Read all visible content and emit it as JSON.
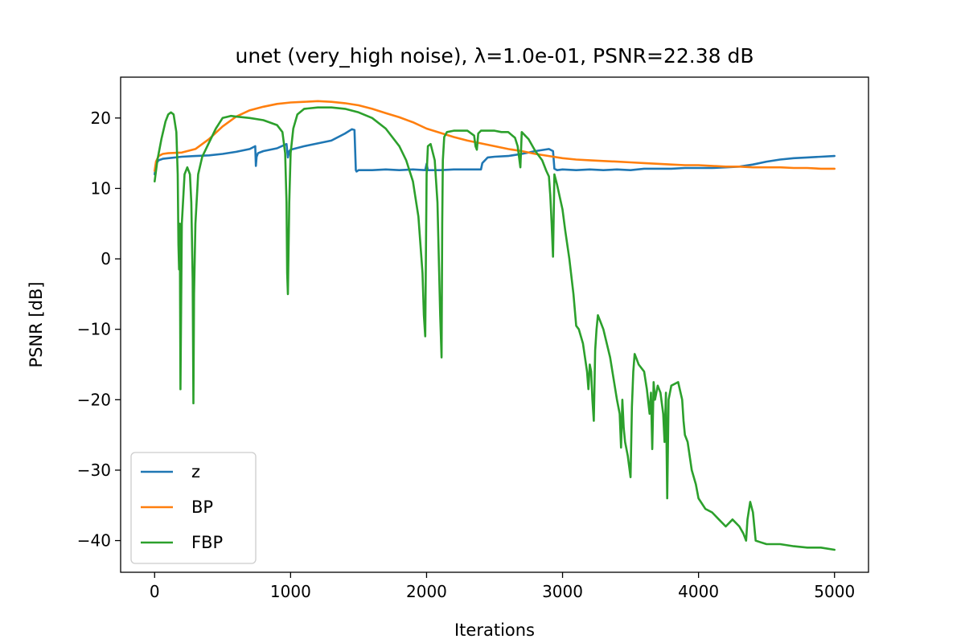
{
  "chart_data": {
    "type": "line",
    "title": "unet (very_high noise), λ=1.0e-01, PSNR=22.38 dB",
    "xlabel": "Iterations",
    "ylabel": "PSNR [dB]",
    "xlim": [
      -250,
      5250
    ],
    "ylim": [
      -44.5,
      25.8
    ],
    "xticks": [
      0,
      1000,
      2000,
      3000,
      4000,
      5000
    ],
    "xtick_labels": [
      "0",
      "1000",
      "2000",
      "3000",
      "4000",
      "5000"
    ],
    "yticks": [
      20,
      10,
      0,
      -10,
      -20,
      -30,
      -40
    ],
    "ytick_labels": [
      "20",
      "10",
      "0",
      "−10",
      "−20",
      "−30",
      "−40"
    ],
    "grid": false,
    "legend": "lower-left",
    "series": [
      {
        "name": "z",
        "color": "#1f77b4",
        "x": [
          0,
          10,
          30,
          60,
          100,
          150,
          200,
          300,
          400,
          500,
          600,
          700,
          740,
          745,
          750,
          760,
          800,
          900,
          970,
          980,
          990,
          1000,
          1100,
          1200,
          1300,
          1400,
          1450,
          1470,
          1480,
          1485,
          1500,
          1600,
          1700,
          1800,
          1900,
          1990,
          2000,
          2010,
          2100,
          2200,
          2300,
          2400,
          2410,
          2450,
          2500,
          2600,
          2700,
          2800,
          2900,
          2930,
          2940,
          2960,
          3000,
          3100,
          3200,
          3300,
          3400,
          3500,
          3600,
          3700,
          3800,
          3900,
          4000,
          4100,
          4200,
          4300,
          4400,
          4500,
          4600,
          4700,
          4800,
          4900,
          5000
        ],
        "y": [
          12,
          13.5,
          14,
          14.2,
          14.3,
          14.4,
          14.5,
          14.6,
          14.7,
          14.9,
          15.2,
          15.6,
          16,
          13.2,
          14.5,
          15,
          15.3,
          15.7,
          16.3,
          14.4,
          15.3,
          15.5,
          16,
          16.4,
          16.8,
          17.8,
          18.4,
          18.3,
          12.6,
          12.4,
          12.6,
          12.6,
          12.7,
          12.6,
          12.7,
          12.6,
          13.5,
          12.6,
          12.6,
          12.7,
          12.7,
          12.7,
          13.6,
          14.4,
          14.5,
          14.6,
          14.9,
          15.3,
          15.6,
          15.3,
          12.8,
          12.6,
          12.7,
          12.6,
          12.7,
          12.6,
          12.7,
          12.6,
          12.8,
          12.8,
          12.8,
          12.9,
          12.9,
          12.9,
          13,
          13.1,
          13.4,
          13.8,
          14.1,
          14.3,
          14.4,
          14.5,
          14.6
        ]
      },
      {
        "name": "BP",
        "color": "#ff7f0e",
        "x": [
          0,
          10,
          30,
          60,
          100,
          200,
          300,
          400,
          500,
          600,
          700,
          800,
          900,
          1000,
          1100,
          1200,
          1300,
          1400,
          1500,
          1600,
          1700,
          1800,
          1900,
          2000,
          2100,
          2200,
          2300,
          2400,
          2500,
          2600,
          2700,
          2800,
          2900,
          3000,
          3100,
          3200,
          3300,
          3400,
          3500,
          3600,
          3700,
          3800,
          3900,
          4000,
          4100,
          4200,
          4300,
          4400,
          4500,
          4600,
          4700,
          4800,
          4900,
          5000
        ],
        "y": [
          12.5,
          13.8,
          14.6,
          14.9,
          15,
          15.1,
          15.6,
          17,
          18.8,
          20.2,
          21.1,
          21.6,
          22,
          22.2,
          22.3,
          22.4,
          22.3,
          22.1,
          21.8,
          21.3,
          20.7,
          20.1,
          19.4,
          18.5,
          17.9,
          17.3,
          16.8,
          16.4,
          16,
          15.6,
          15.3,
          14.9,
          14.6,
          14.3,
          14.1,
          14,
          13.9,
          13.8,
          13.7,
          13.6,
          13.5,
          13.4,
          13.3,
          13.3,
          13.2,
          13.1,
          13.1,
          13,
          13,
          13,
          12.9,
          12.9,
          12.8,
          12.8
        ]
      },
      {
        "name": "FBP",
        "color": "#2ca02c",
        "x": [
          0,
          20,
          50,
          80,
          100,
          120,
          140,
          160,
          170,
          175,
          180,
          185,
          190,
          200,
          220,
          240,
          260,
          270,
          280,
          285,
          290,
          300,
          320,
          350,
          400,
          450,
          500,
          540,
          560,
          600,
          700,
          800,
          900,
          940,
          960,
          970,
          975,
          980,
          990,
          1000,
          1020,
          1050,
          1100,
          1200,
          1300,
          1400,
          1500,
          1600,
          1700,
          1800,
          1850,
          1900,
          1940,
          1970,
          1980,
          1990,
          1995,
          2000,
          2010,
          2030,
          2060,
          2080,
          2100,
          2110,
          2115,
          2120,
          2130,
          2150,
          2200,
          2300,
          2350,
          2360,
          2370,
          2380,
          2400,
          2500,
          2550,
          2600,
          2650,
          2670,
          2680,
          2690,
          2700,
          2750,
          2800,
          2850,
          2880,
          2900,
          2910,
          2920,
          2930,
          2940,
          2960,
          3000,
          3020,
          3050,
          3080,
          3100,
          3120,
          3150,
          3180,
          3190,
          3200,
          3210,
          3220,
          3230,
          3240,
          3250,
          3260,
          3280,
          3300,
          3350,
          3400,
          3420,
          3430,
          3440,
          3450,
          3460,
          3480,
          3500,
          3510,
          3520,
          3530,
          3540,
          3560,
          3600,
          3620,
          3640,
          3650,
          3660,
          3670,
          3680,
          3700,
          3720,
          3740,
          3750,
          3760,
          3770,
          3780,
          3800,
          3850,
          3880,
          3890,
          3900,
          3920,
          3950,
          3980,
          4000,
          4050,
          4100,
          4150,
          4200,
          4250,
          4300,
          4330,
          4350,
          4360,
          4380,
          4400,
          4420,
          4450,
          4500,
          4600,
          4700,
          4800,
          4900,
          5000
        ],
        "y": [
          11,
          14,
          17,
          19.5,
          20.5,
          20.8,
          20.5,
          18,
          12,
          2,
          -1.5,
          5,
          -18.5,
          5,
          12,
          13,
          12,
          8,
          -3,
          -20.5,
          -5,
          5,
          12,
          14.5,
          16.5,
          18.5,
          20,
          20.2,
          20.3,
          20.2,
          20,
          19.7,
          19,
          18,
          15,
          8,
          -2,
          -5,
          8,
          15,
          18.5,
          20.5,
          21.3,
          21.5,
          21.5,
          21.3,
          20.8,
          20,
          18.5,
          16,
          14,
          11,
          6,
          -2,
          -8,
          -11,
          0,
          12,
          16,
          16.3,
          14,
          8,
          -8,
          -14,
          5,
          14,
          17.3,
          18,
          18.2,
          18.2,
          17.5,
          16,
          15.5,
          17.8,
          18.2,
          18.2,
          18,
          18,
          17.2,
          16,
          14.5,
          13,
          18,
          17,
          15.3,
          14,
          12.5,
          11.7,
          9,
          5,
          0.3,
          12,
          10.5,
          7,
          4,
          0,
          -5,
          -9.5,
          -10,
          -12,
          -16,
          -18.5,
          -15,
          -16,
          -20,
          -23,
          -13,
          -10,
          -8,
          -9,
          -10,
          -14,
          -20,
          -22,
          -26.8,
          -20,
          -24,
          -26,
          -28,
          -31,
          -21,
          -16,
          -13.5,
          -14,
          -15,
          -16,
          -18.5,
          -22,
          -19,
          -27,
          -17.5,
          -20,
          -18,
          -19,
          -22,
          -26,
          -19,
          -34,
          -20,
          -18,
          -17.5,
          -20,
          -23,
          -25,
          -26,
          -30,
          -32,
          -34,
          -35.5,
          -36,
          -37,
          -38,
          -37,
          -38,
          -39,
          -40,
          -37,
          -34.5,
          -36,
          -40,
          -40.2,
          -40.5,
          -40.5,
          -40.8,
          -41,
          -41,
          -41.3
        ]
      }
    ]
  }
}
